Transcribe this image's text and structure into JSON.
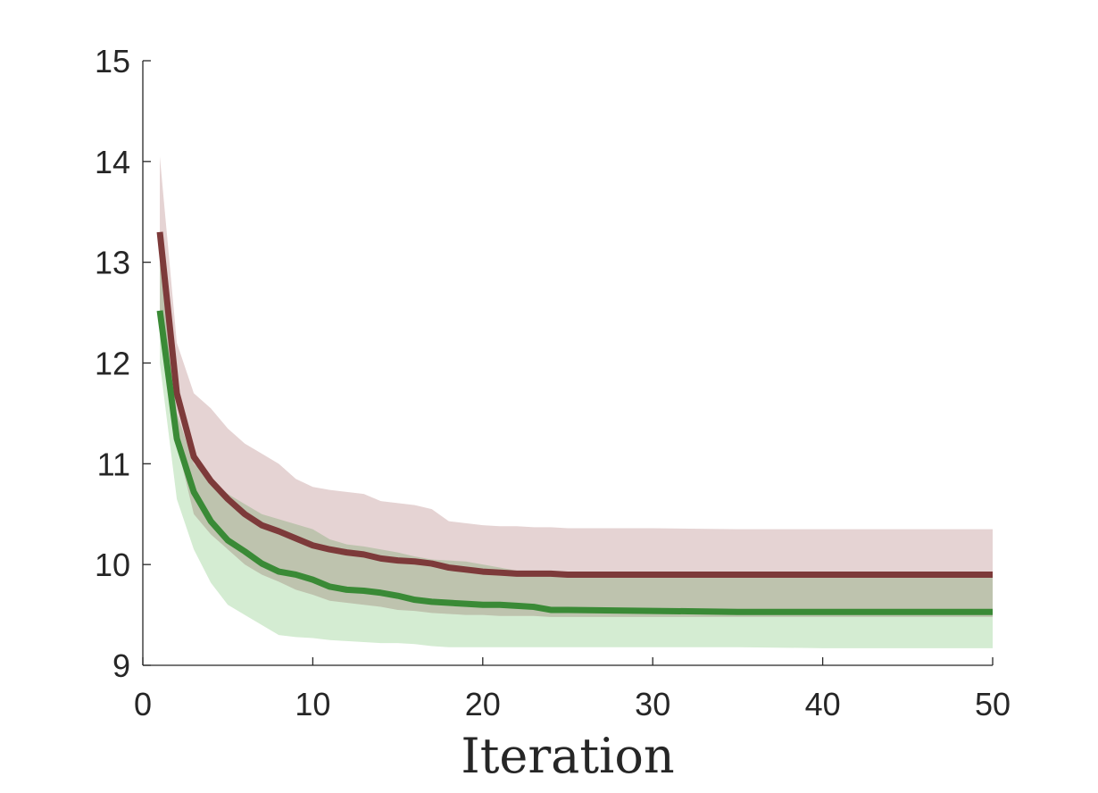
{
  "chart_data": {
    "type": "line",
    "title": "",
    "xlabel": "Iteration",
    "ylabel": "",
    "xlim": [
      0,
      50
    ],
    "ylim": [
      9,
      15
    ],
    "xticks": [
      0,
      10,
      20,
      30,
      40,
      50
    ],
    "yticks": [
      9,
      10,
      11,
      12,
      13,
      14,
      15
    ],
    "grid": false,
    "series": [
      {
        "color": "#7d3a3a",
        "band_color": "#e5d3d3",
        "x": [
          1,
          2,
          3,
          4,
          5,
          6,
          7,
          8,
          9,
          10,
          11,
          12,
          13,
          14,
          15,
          16,
          17,
          18,
          19,
          20,
          21,
          22,
          23,
          24,
          25,
          30,
          35,
          40,
          45,
          50
        ],
        "values": [
          13.3,
          11.7,
          11.07,
          10.83,
          10.65,
          10.5,
          10.39,
          10.33,
          10.26,
          10.19,
          10.15,
          10.12,
          10.1,
          10.06,
          10.04,
          10.03,
          10.01,
          9.97,
          9.95,
          9.93,
          9.92,
          9.91,
          9.91,
          9.91,
          9.9,
          9.9,
          9.9,
          9.9,
          9.9,
          9.9
        ],
        "upper": [
          14.05,
          12.2,
          11.7,
          11.55,
          11.35,
          11.2,
          11.1,
          11.0,
          10.85,
          10.77,
          10.74,
          10.72,
          10.7,
          10.63,
          10.61,
          10.59,
          10.55,
          10.43,
          10.41,
          10.39,
          10.38,
          10.38,
          10.37,
          10.37,
          10.36,
          10.36,
          10.35,
          10.35,
          10.35,
          10.35
        ],
        "lower": [
          12.5,
          11.2,
          10.5,
          10.3,
          10.15,
          10.0,
          9.9,
          9.83,
          9.75,
          9.7,
          9.64,
          9.62,
          9.6,
          9.58,
          9.55,
          9.54,
          9.52,
          9.51,
          9.5,
          9.5,
          9.49,
          9.49,
          9.49,
          9.48,
          9.48,
          9.48,
          9.48,
          9.48,
          9.48,
          9.48
        ]
      },
      {
        "color": "#3a8a36",
        "band_color": "#d4ecd2",
        "x": [
          1,
          2,
          3,
          4,
          5,
          6,
          7,
          8,
          9,
          10,
          11,
          12,
          13,
          14,
          15,
          16,
          17,
          18,
          19,
          20,
          21,
          22,
          23,
          24,
          25,
          30,
          35,
          40,
          45,
          50
        ],
        "values": [
          12.52,
          11.25,
          10.72,
          10.43,
          10.24,
          10.13,
          10.01,
          9.93,
          9.9,
          9.85,
          9.78,
          9.75,
          9.74,
          9.72,
          9.69,
          9.65,
          9.63,
          9.62,
          9.61,
          9.6,
          9.6,
          9.59,
          9.58,
          9.55,
          9.55,
          9.54,
          9.53,
          9.53,
          9.53,
          9.53
        ],
        "upper": [
          13.0,
          11.5,
          11.0,
          10.85,
          10.7,
          10.6,
          10.5,
          10.45,
          10.4,
          10.35,
          10.25,
          10.2,
          10.18,
          10.15,
          10.12,
          10.08,
          10.05,
          10.04,
          10.03,
          10.0,
          9.97,
          9.94,
          9.92,
          9.9,
          9.89,
          9.88,
          9.88,
          9.88,
          9.88,
          9.88
        ],
        "lower": [
          12.0,
          10.65,
          10.15,
          9.82,
          9.6,
          9.5,
          9.4,
          9.3,
          9.28,
          9.27,
          9.25,
          9.24,
          9.23,
          9.22,
          9.22,
          9.21,
          9.19,
          9.18,
          9.18,
          9.18,
          9.18,
          9.18,
          9.18,
          9.18,
          9.18,
          9.18,
          9.18,
          9.17,
          9.17,
          9.17
        ]
      }
    ]
  }
}
